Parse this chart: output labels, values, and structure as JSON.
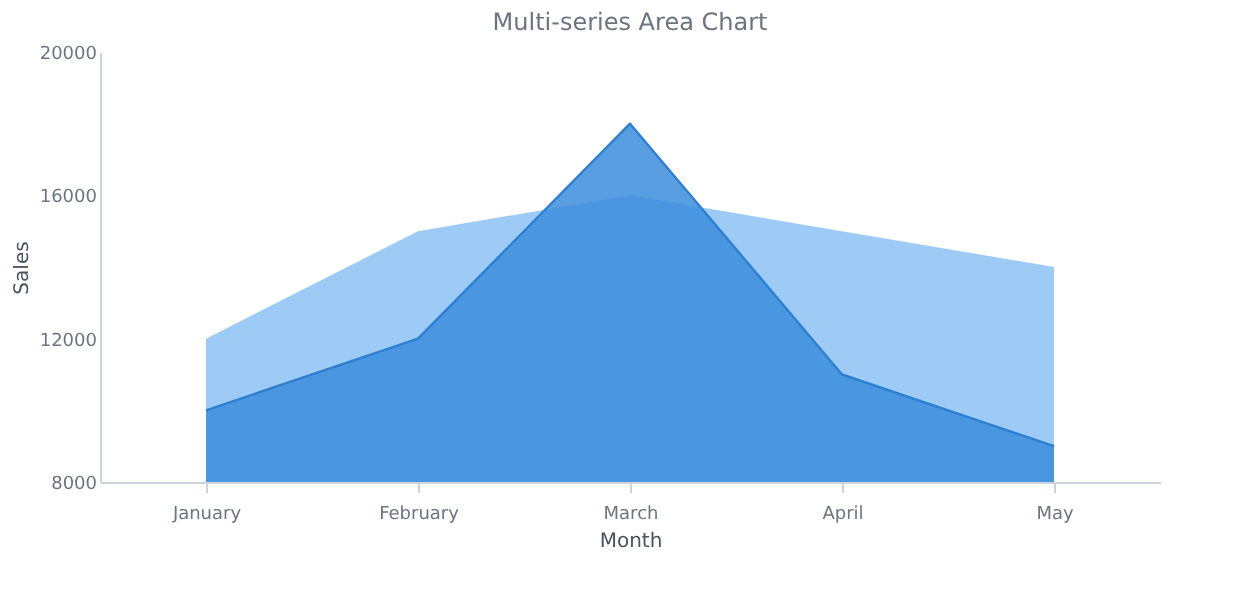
{
  "chart_data": {
    "type": "area",
    "title": "Multi-series Area Chart",
    "xlabel": "Month",
    "ylabel": "Sales",
    "categories": [
      "January",
      "February",
      "March",
      "April",
      "May"
    ],
    "series": [
      {
        "color": "#9dcbf6",
        "values": [
          12000,
          15000,
          16000,
          15000,
          14000
        ]
      },
      {
        "color": "#3d8ddd",
        "values": [
          10000,
          12000,
          18000,
          11000,
          9000
        ]
      }
    ],
    "ylim": [
      8000,
      20000
    ],
    "yticks": [
      8000,
      12000,
      16000,
      20000
    ],
    "grid": false
  }
}
